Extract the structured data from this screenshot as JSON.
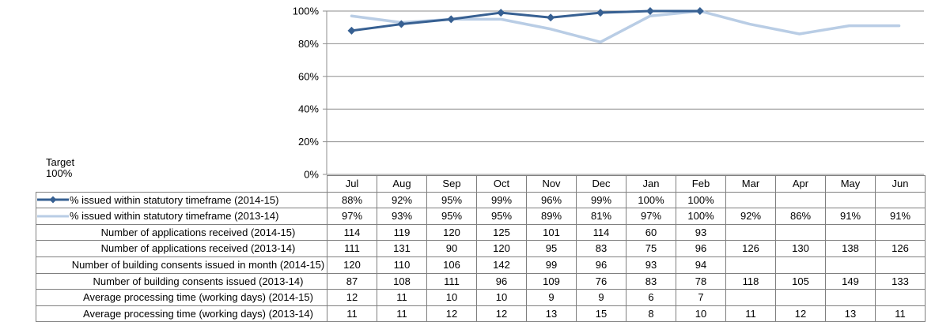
{
  "colors": {
    "series_2014_15": "#376092",
    "series_2013_14": "#b9cde5",
    "gridline": "#8e8e8e",
    "table_border": "#7f7f7f",
    "text": "#000000"
  },
  "chart_data": {
    "type": "line",
    "categories": [
      "Jul",
      "Aug",
      "Sep",
      "Oct",
      "Nov",
      "Dec",
      "Jan",
      "Feb",
      "Mar",
      "Apr",
      "May",
      "Jun"
    ],
    "series": [
      {
        "name": "% issued within statutory timeframe (2014-15)",
        "values": [
          88,
          92,
          95,
          99,
          96,
          99,
          100,
          100,
          null,
          null,
          null,
          null
        ],
        "color": "#376092",
        "marker": "diamond",
        "width": 3
      },
      {
        "name": "% issued within statutory timeframe (2013-14)",
        "values": [
          97,
          93,
          95,
          95,
          89,
          81,
          97,
          100,
          92,
          86,
          91,
          91
        ],
        "color": "#b9cde5",
        "marker": "none",
        "width": 3.5
      }
    ],
    "title": "",
    "xlabel": "",
    "ylabel": "",
    "ylim": [
      0,
      100
    ],
    "y_ticks": [
      "0%",
      "20%",
      "40%",
      "60%",
      "80%",
      "100%"
    ],
    "grid": "horizontal",
    "legend_position": "in-table-rows",
    "annotation": {
      "line1": "Target",
      "line2": "100%"
    }
  },
  "table": {
    "columns": [
      "Jul",
      "Aug",
      "Sep",
      "Oct",
      "Nov",
      "Dec",
      "Jan",
      "Feb",
      "Mar",
      "Apr",
      "May",
      "Jun"
    ],
    "rows": [
      {
        "label": "% issued within statutory timeframe (2014-15)",
        "legend": "series_2014_15",
        "values": [
          "88%",
          "92%",
          "95%",
          "99%",
          "96%",
          "99%",
          "100%",
          "100%",
          "",
          "",
          "",
          ""
        ]
      },
      {
        "label": "% issued within statutory timeframe (2013-14)",
        "legend": "series_2013_14",
        "values": [
          "97%",
          "93%",
          "95%",
          "95%",
          "89%",
          "81%",
          "97%",
          "100%",
          "92%",
          "86%",
          "91%",
          "91%"
        ]
      },
      {
        "label": "Number of applications received (2014-15)",
        "legend": "none",
        "values": [
          "114",
          "119",
          "120",
          "125",
          "101",
          "114",
          "60",
          "93",
          "",
          "",
          "",
          ""
        ]
      },
      {
        "label": "Number of applications received (2013-14)",
        "legend": "none",
        "values": [
          "111",
          "131",
          "90",
          "120",
          "95",
          "83",
          "75",
          "96",
          "126",
          "130",
          "138",
          "126"
        ]
      },
      {
        "label": "Number of building consents issued in month (2014-15)",
        "legend": "none",
        "values": [
          "120",
          "110",
          "106",
          "142",
          "99",
          "96",
          "93",
          "94",
          "",
          "",
          "",
          ""
        ]
      },
      {
        "label": "Number of building consents issued (2013-14)",
        "legend": "none",
        "values": [
          "87",
          "108",
          "111",
          "96",
          "109",
          "76",
          "83",
          "78",
          "118",
          "105",
          "149",
          "133"
        ]
      },
      {
        "label": "Average processing time (working days) (2014-15)",
        "legend": "none",
        "values": [
          "12",
          "11",
          "10",
          "10",
          "9",
          "9",
          "6",
          "7",
          "",
          "",
          "",
          ""
        ]
      },
      {
        "label": "Average processing time (working days) (2013-14)",
        "legend": "none",
        "values": [
          "11",
          "11",
          "12",
          "12",
          "13",
          "15",
          "8",
          "10",
          "11",
          "12",
          "13",
          "11"
        ]
      }
    ]
  }
}
